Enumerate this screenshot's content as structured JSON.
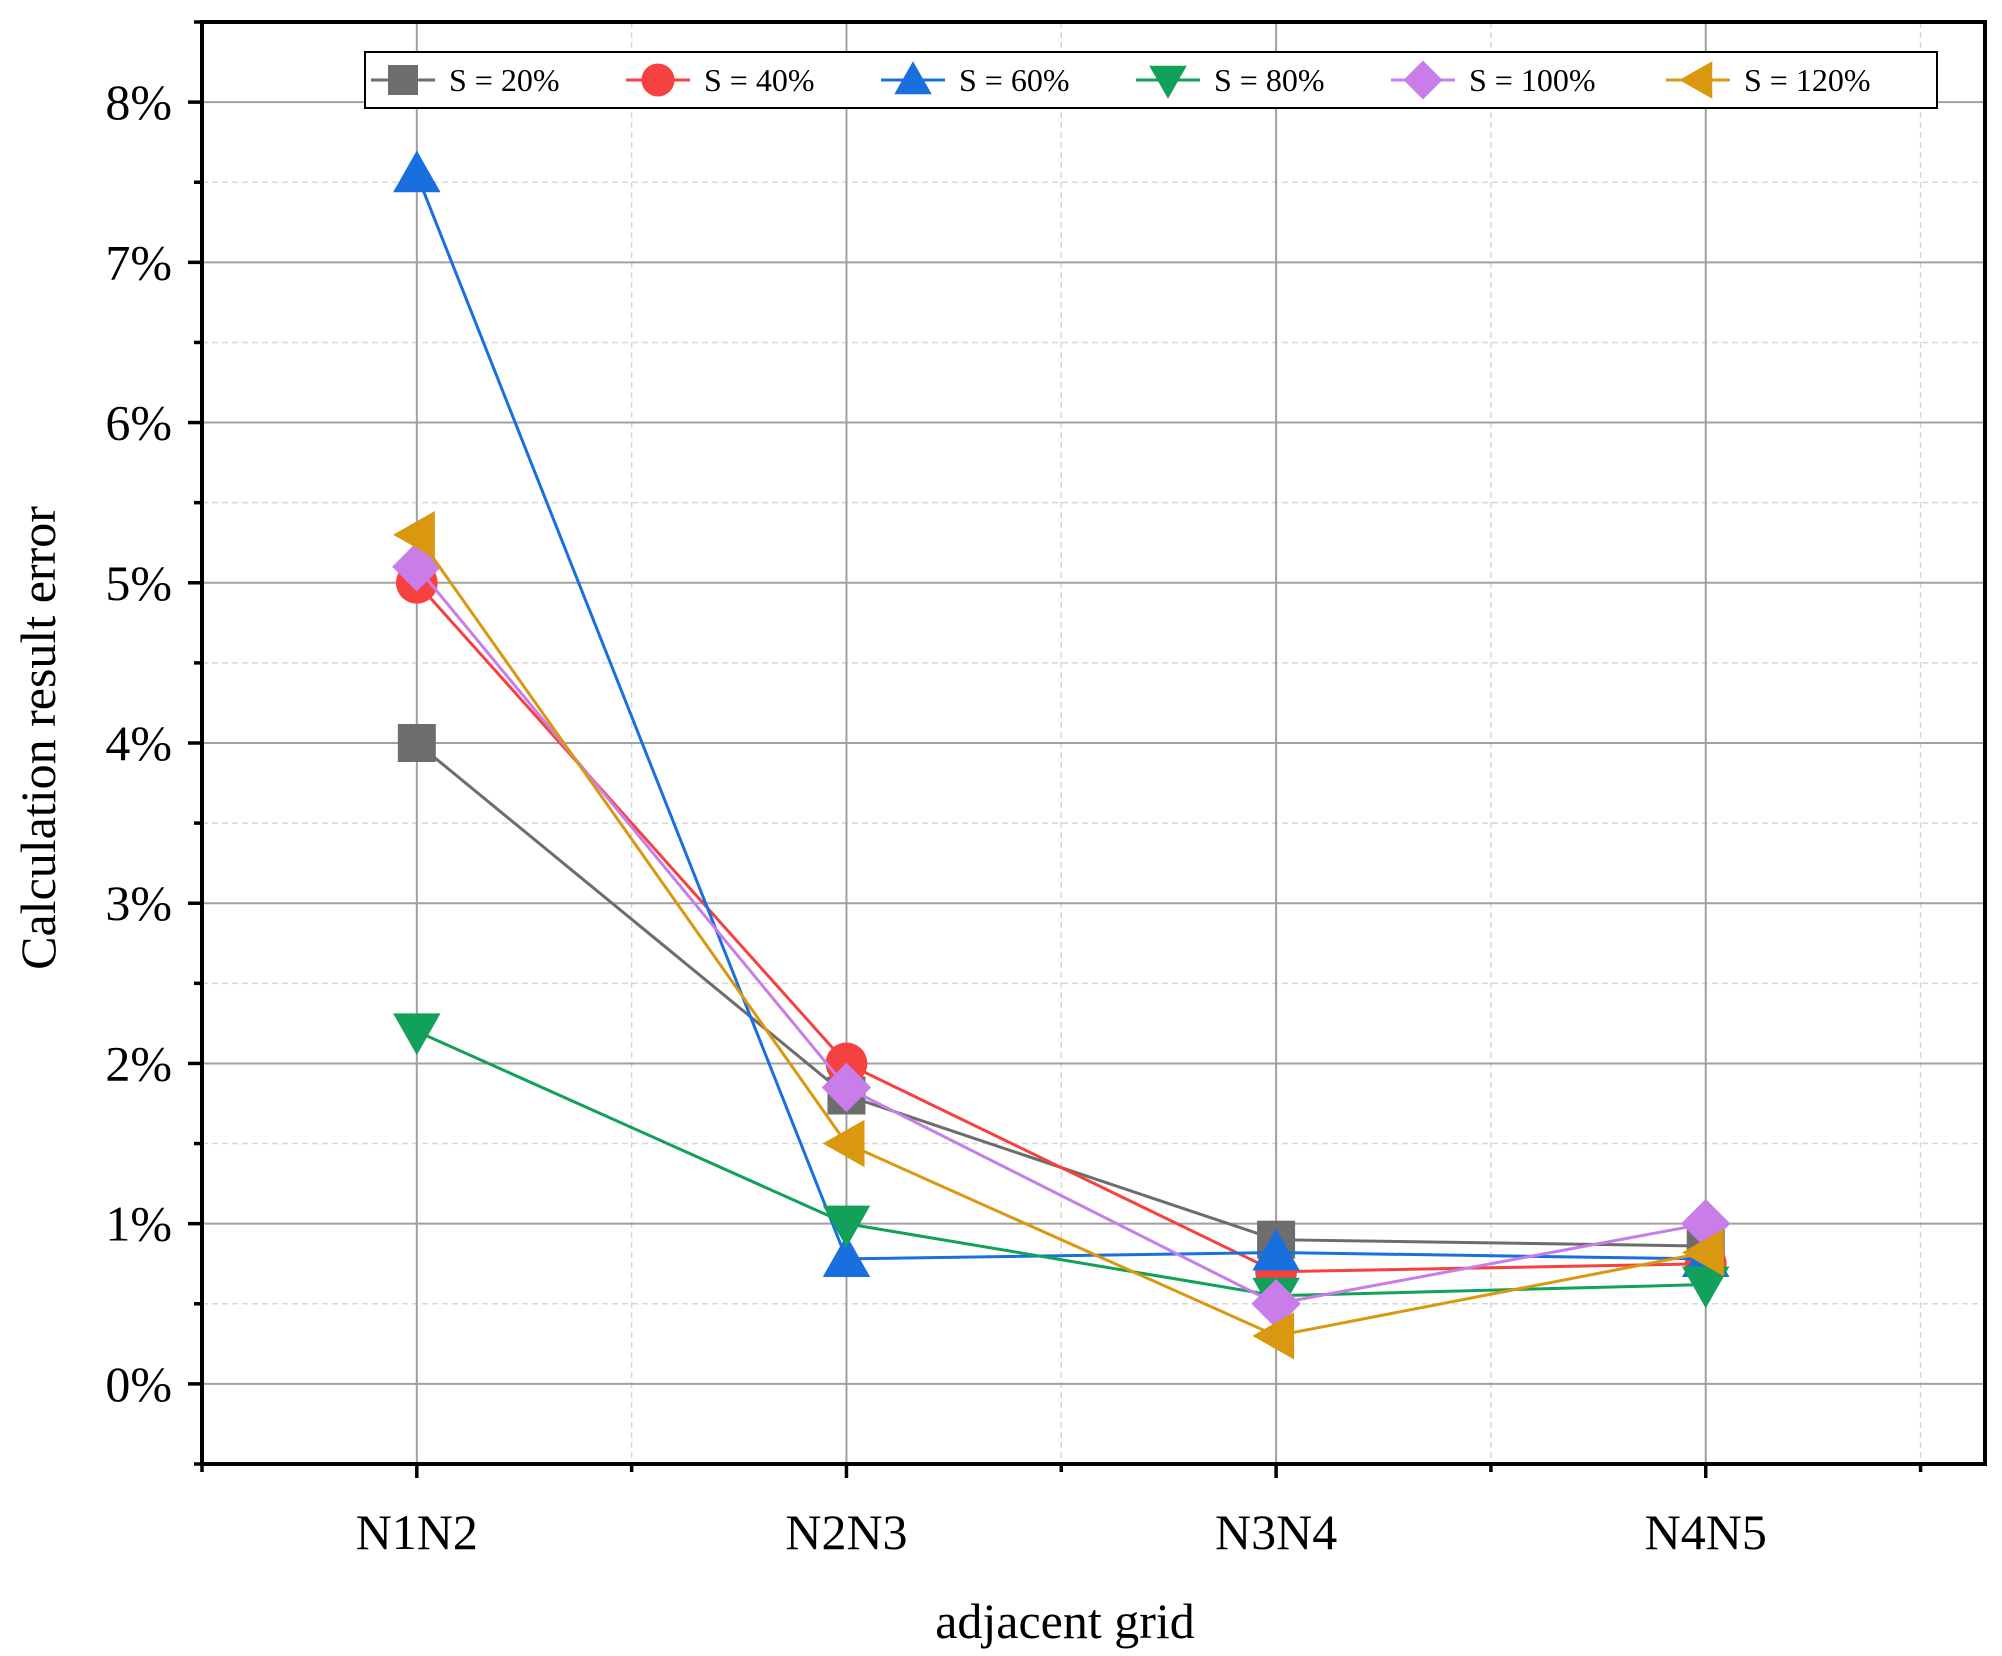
{
  "chart_data": {
    "type": "line",
    "title": "",
    "xlabel": "adjacent grid",
    "ylabel": "Calculation result error",
    "categories": [
      "N1N2",
      "N2N3",
      "N3N4",
      "N4N5"
    ],
    "ylim": [
      -0.5,
      8.5
    ],
    "yticks": [
      0,
      1,
      2,
      3,
      4,
      5,
      6,
      7,
      8
    ],
    "ytick_labels": [
      "0%",
      "1%",
      "2%",
      "3%",
      "4%",
      "5%",
      "6%",
      "7%",
      "8%"
    ],
    "grid": true,
    "legend_position": "top-right",
    "series": [
      {
        "name": "S = 20%",
        "color": "#6d6d6d",
        "marker": "square",
        "values": [
          4.0,
          1.8,
          0.9,
          0.86
        ]
      },
      {
        "name": "S = 40%",
        "color": "#f5413f",
        "marker": "circle",
        "values": [
          5.0,
          2.0,
          0.7,
          0.75
        ]
      },
      {
        "name": "S = 60%",
        "color": "#1a6fdf",
        "marker": "triangle-up",
        "values": [
          7.55,
          0.78,
          0.82,
          0.78
        ]
      },
      {
        "name": "S = 80%",
        "color": "#12a15a",
        "marker": "triangle-down",
        "values": [
          2.2,
          1.0,
          0.55,
          0.62
        ]
      },
      {
        "name": "S = 100%",
        "color": "#c87de8",
        "marker": "diamond",
        "values": [
          5.1,
          1.85,
          0.5,
          1.0
        ]
      },
      {
        "name": "S = 120%",
        "color": "#d9980f",
        "marker": "triangle-left",
        "values": [
          5.3,
          1.5,
          0.3,
          0.82
        ]
      }
    ]
  }
}
